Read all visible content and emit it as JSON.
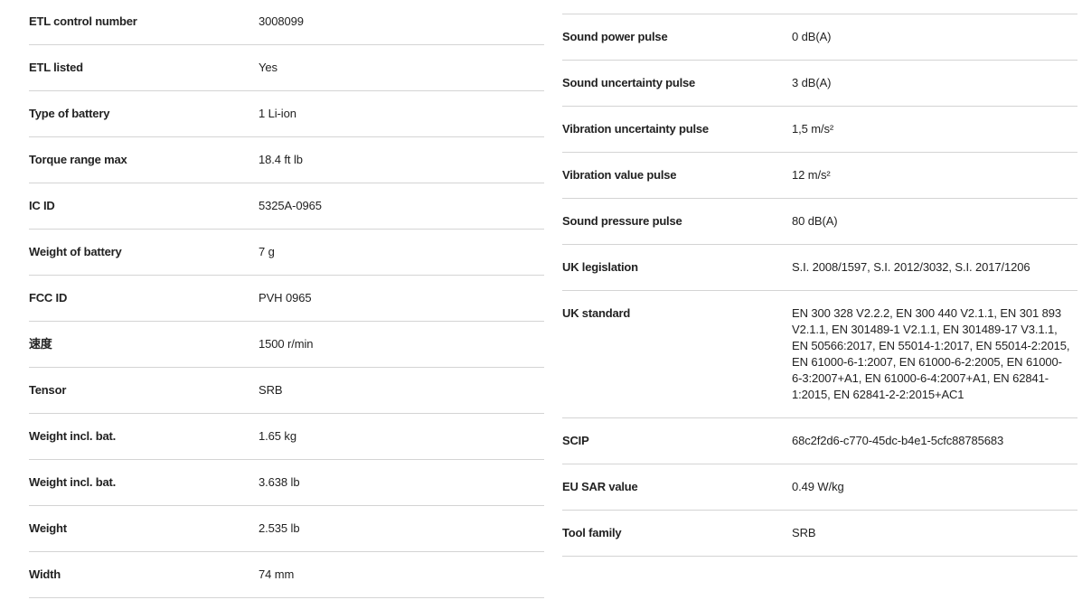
{
  "left": [
    {
      "label": "ETL control number",
      "value": "3008099"
    },
    {
      "label": "ETL listed",
      "value": "Yes"
    },
    {
      "label": "Type of battery",
      "value": "1 Li-ion"
    },
    {
      "label": "Torque range max",
      "value": "18.4 ft lb"
    },
    {
      "label": "IC ID",
      "value": "5325A-0965"
    },
    {
      "label": "Weight of battery",
      "value": "7 g"
    },
    {
      "label": "FCC ID",
      "value": "PVH 0965"
    },
    {
      "label": "速度",
      "value": "1500 r/min"
    },
    {
      "label": "Tensor",
      "value": "SRB"
    },
    {
      "label": "Weight incl. bat.",
      "value": "1.65 kg"
    },
    {
      "label": "Weight incl. bat.",
      "value": "3.638 lb"
    },
    {
      "label": "Weight",
      "value": "2.535 lb"
    },
    {
      "label": "Width",
      "value": "74 mm"
    }
  ],
  "right": [
    {
      "label": "Sound power pulse",
      "value": "0 dB(A)"
    },
    {
      "label": "Sound uncertainty pulse",
      "value": "3 dB(A)"
    },
    {
      "label": "Vibration uncertainty pulse",
      "value": "1,5 m/s²"
    },
    {
      "label": "Vibration value pulse",
      "value": "12 m/s²"
    },
    {
      "label": "Sound pressure pulse",
      "value": "80 dB(A)"
    },
    {
      "label": "UK legislation",
      "value": "S.I. 2008/1597, S.I. 2012/3032, S.I. 2017/1206"
    },
    {
      "label": "UK standard",
      "value": "EN 300 328 V2.2.2, EN 300 440 V2.1.1, EN 301 893 V2.1.1, EN 301489-1 V2.1.1, EN 301489-17 V3.1.1, EN 50566:2017, EN 55014-1:2017, EN 55014-2:2015, EN 61000-6-1:2007, EN 61000-6-2:2005, EN 61000-6-3:2007+A1, EN 61000-6-4:2007+A1, EN 62841-1:2015, EN 62841-2-2:2015+AC1"
    },
    {
      "label": "SCIP",
      "value": "68c2f2d6-c770-45dc-b4e1-5cfc88785683"
    },
    {
      "label": "EU SAR value",
      "value": "0.49 W/kg"
    },
    {
      "label": "Tool family",
      "value": "SRB"
    }
  ]
}
